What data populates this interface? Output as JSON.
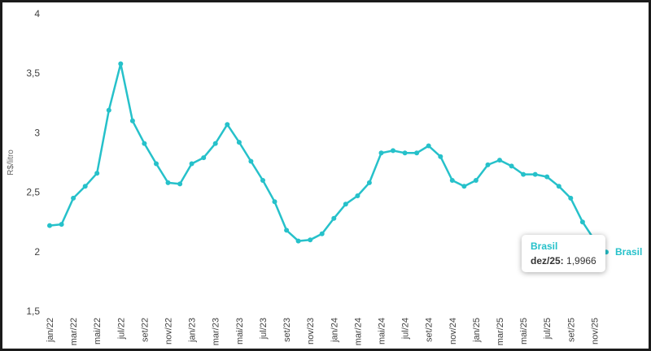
{
  "chart_data": {
    "type": "line",
    "title": "",
    "ylabel": "R$/litro",
    "ylim": [
      1.5,
      4
    ],
    "grid": "off",
    "legend_position": "none",
    "y_ticks": [
      {
        "value": 4,
        "label": "4"
      },
      {
        "value": 3.5,
        "label": "3,5"
      },
      {
        "value": 3,
        "label": "3"
      },
      {
        "value": 2.5,
        "label": "2,5"
      },
      {
        "value": 2,
        "label": "2"
      },
      {
        "value": 1.5,
        "label": "1,5"
      }
    ],
    "x_tick_labels": [
      "jan/22",
      "mar/22",
      "mai/22",
      "jul/22",
      "set/22",
      "nov/22",
      "jan/23",
      "mar/23",
      "mai/23",
      "jul/23",
      "set/23",
      "nov/23",
      "jan/24",
      "mar/24",
      "mai/24",
      "jul/24",
      "set/24",
      "nov/24",
      "jan/25",
      "mar/25",
      "mai/25",
      "jul/25",
      "set/25",
      "nov/25"
    ],
    "x_months": [
      "jan/22",
      "fev/22",
      "mar/22",
      "abr/22",
      "mai/22",
      "jun/22",
      "jul/22",
      "ago/22",
      "set/22",
      "out/22",
      "nov/22",
      "dez/22",
      "jan/23",
      "fev/23",
      "mar/23",
      "abr/23",
      "mai/23",
      "jun/23",
      "jul/23",
      "ago/23",
      "set/23",
      "out/23",
      "nov/23",
      "dez/23",
      "jan/24",
      "fev/24",
      "mar/24",
      "abr/24",
      "mai/24",
      "jun/24",
      "jul/24",
      "ago/24",
      "set/24",
      "out/24",
      "nov/24",
      "dez/24",
      "jan/25",
      "fev/25",
      "mar/25",
      "abr/25",
      "mai/25",
      "jun/25",
      "jul/25",
      "ago/25",
      "set/25",
      "out/25",
      "nov/25",
      "dez/25"
    ],
    "series": [
      {
        "name": "Brasil",
        "color": "#26c1ca",
        "values": [
          2.22,
          2.23,
          2.45,
          2.55,
          2.66,
          3.19,
          3.58,
          3.1,
          2.91,
          2.74,
          2.58,
          2.57,
          2.74,
          2.79,
          2.91,
          3.07,
          2.92,
          2.76,
          2.6,
          2.42,
          2.18,
          2.09,
          2.1,
          2.15,
          2.28,
          2.4,
          2.47,
          2.58,
          2.83,
          2.85,
          2.83,
          2.83,
          2.89,
          2.8,
          2.6,
          2.55,
          2.6,
          2.73,
          2.77,
          2.72,
          2.65,
          2.65,
          2.63,
          2.55,
          2.45,
          2.25,
          2.1,
          1.9966
        ]
      }
    ],
    "tooltip": {
      "title": "Brasil",
      "label": "dez/25:",
      "value": "1,9966"
    },
    "end_label": "Brasil"
  }
}
